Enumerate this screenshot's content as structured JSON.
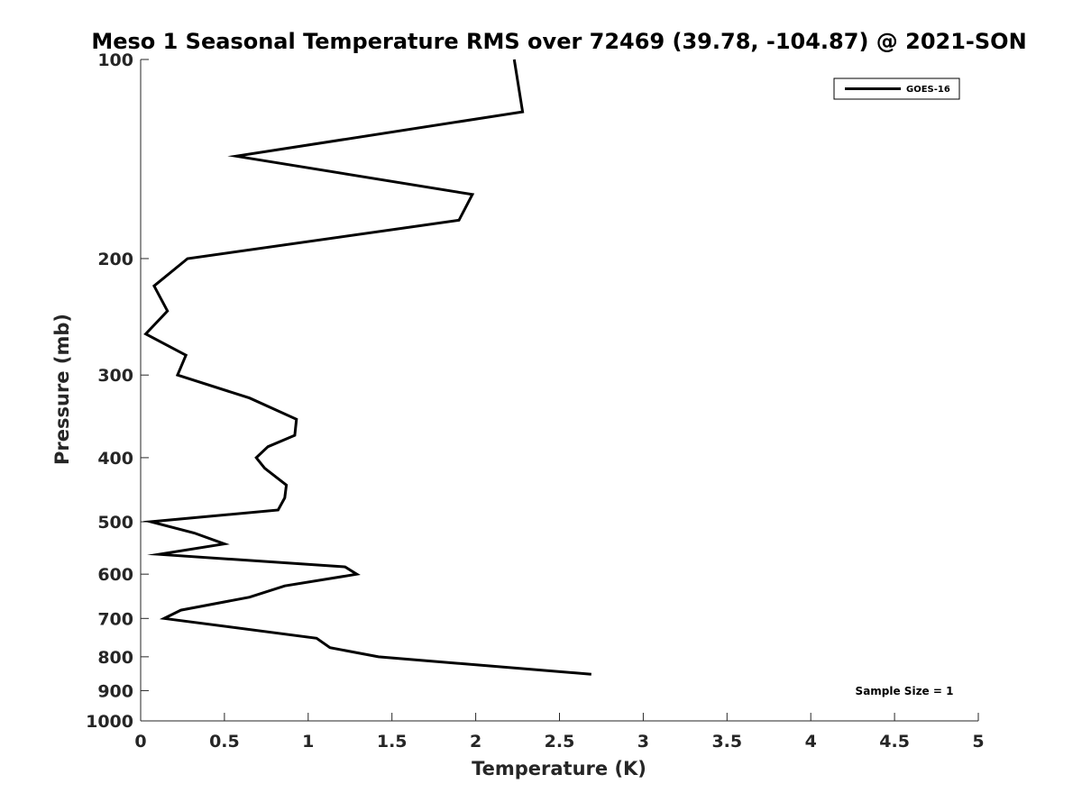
{
  "chart_data": {
    "type": "line",
    "title": "Meso 1 Seasonal Temperature RMS over 72469 (39.78, -104.87) @ 2021-SON",
    "xlabel": "Temperature (K)",
    "ylabel": "Pressure (mb)",
    "xlim": [
      0,
      5
    ],
    "ylim": [
      100,
      1000
    ],
    "yscale": "log",
    "y_reversed": true,
    "xticks": [
      0,
      0.5,
      1,
      1.5,
      2,
      2.5,
      3,
      3.5,
      4,
      4.5,
      5
    ],
    "xtick_labels": [
      "0",
      "0.5",
      "1",
      "1.5",
      "2",
      "2.5",
      "3",
      "3.5",
      "4",
      "4.5",
      "5"
    ],
    "yticks": [
      100,
      200,
      300,
      400,
      500,
      600,
      700,
      800,
      900,
      1000
    ],
    "ytick_labels": [
      "100",
      "200",
      "300",
      "400",
      "500",
      "600",
      "700",
      "800",
      "900",
      "1000"
    ],
    "legend_position": "top-right",
    "grid": false,
    "annotation": "Sample Size = 1",
    "line_color": "#000000",
    "series": [
      {
        "name": "GOES-16",
        "x": [
          2.23,
          2.28,
          0.57,
          1.98,
          1.9,
          0.28,
          0.08,
          0.16,
          0.03,
          0.27,
          0.22,
          0.65,
          0.93,
          0.92,
          0.76,
          0.69,
          0.74,
          0.87,
          0.86,
          0.82,
          0.06,
          0.32,
          0.5,
          0.11,
          1.22,
          1.29,
          0.86,
          0.65,
          0.24,
          0.14,
          1.05,
          1.13,
          1.42,
          2.69
        ],
        "y": [
          100,
          120,
          140,
          160,
          175,
          200,
          220,
          240,
          260,
          280,
          300,
          325,
          350,
          370,
          385,
          400,
          415,
          440,
          460,
          480,
          500,
          520,
          540,
          560,
          585,
          600,
          625,
          650,
          680,
          700,
          750,
          775,
          800,
          850
        ]
      }
    ]
  }
}
